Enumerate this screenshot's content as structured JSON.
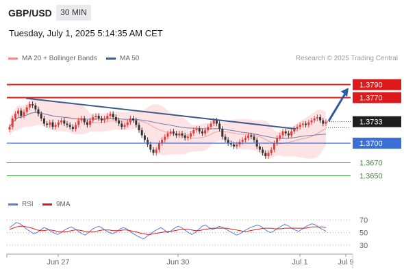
{
  "header": {
    "symbol": "GBP/USD",
    "timeframe": "30 MIN",
    "datetime": "Tuesday, July 1, 2025 5:14:35 AM CET"
  },
  "legend": {
    "ma20": "MA 20 + Bollinger Bands",
    "ma50": "MA 50",
    "credit": "Research © 2025 Trading Central"
  },
  "rsi_legend": {
    "rsi": "RSI",
    "ma": "9MA"
  },
  "colors": {
    "resistance": "#dd1a1a",
    "support": "#3a6fd8",
    "target": "#4caf50",
    "trend": "#3b5a8a",
    "bullish": "#e23b3b",
    "bearish": "#333333",
    "bb_fill": "#fde3e3"
  },
  "chart_data": [
    {
      "type": "candlestick",
      "title": "GBP/USD",
      "y_range": [
        1.362,
        1.382
      ],
      "x_ticks": [
        "Jun 27",
        "Jun 30",
        "Jul 1",
        "Jul 9"
      ],
      "levels": [
        {
          "label": "1.3790",
          "value": 1.379,
          "kind": "resistance"
        },
        {
          "label": "1.3770",
          "value": 1.377,
          "kind": "resistance"
        },
        {
          "label": "1.3733",
          "value": 1.3733,
          "kind": "last"
        },
        {
          "label": "1.3700",
          "value": 1.37,
          "kind": "support"
        },
        {
          "label": "1.3670",
          "value": 1.367,
          "kind": "target"
        },
        {
          "label": "1.3650",
          "value": 1.365,
          "kind": "target"
        }
      ],
      "trendline": {
        "from_value": 1.3769,
        "to_value": 1.3722
      },
      "projection": {
        "from_value": 1.3734,
        "to_value": 1.3785
      },
      "closes": [
        1.3725,
        1.3738,
        1.3745,
        1.375,
        1.3742,
        1.3748,
        1.3755,
        1.376,
        1.3758,
        1.3752,
        1.3745,
        1.3738,
        1.373,
        1.3728,
        1.3732,
        1.3725,
        1.3728,
        1.3732,
        1.3735,
        1.373,
        1.3728,
        1.3725,
        1.3722,
        1.3728,
        1.3735,
        1.3738,
        1.3732,
        1.3728,
        1.3735,
        1.374,
        1.3742,
        1.3738,
        1.3735,
        1.3738,
        1.3742,
        1.3745,
        1.374,
        1.3735,
        1.373,
        1.3725,
        1.3728,
        1.3732,
        1.3738,
        1.3735,
        1.3728,
        1.372,
        1.3712,
        1.3705,
        1.3698,
        1.369,
        1.3685,
        1.369,
        1.37,
        1.3705,
        1.371,
        1.3715,
        1.3718,
        1.3715,
        1.3712,
        1.3715,
        1.3712,
        1.3708,
        1.371,
        1.3715,
        1.372,
        1.3722,
        1.3718,
        1.3715,
        1.372,
        1.3725,
        1.373,
        1.3735,
        1.373,
        1.3722,
        1.371,
        1.3705,
        1.37,
        1.3698,
        1.3695,
        1.3698,
        1.3702,
        1.3705,
        1.3708,
        1.3712,
        1.371,
        1.3705,
        1.3695,
        1.369,
        1.3685,
        1.368,
        1.3685,
        1.369,
        1.37,
        1.3708,
        1.3712,
        1.3718,
        1.3715,
        1.3712,
        1.3718,
        1.3722,
        1.3725,
        1.3728,
        1.373,
        1.3728,
        1.3732,
        1.3735,
        1.3738,
        1.374,
        1.3735,
        1.373,
        1.3733
      ]
    },
    {
      "type": "line",
      "title": "RSI",
      "y_range": [
        20,
        80
      ],
      "y_ticks": [
        "70",
        "50",
        "30"
      ],
      "series": [
        {
          "name": "RSI",
          "values": [
            58,
            62,
            66,
            64,
            60,
            55,
            52,
            48,
            50,
            54,
            58,
            56,
            52,
            49,
            47,
            50,
            54,
            57,
            59,
            56,
            52,
            48,
            46,
            50,
            55,
            58,
            60,
            57,
            53,
            50,
            48,
            51,
            55,
            58,
            56,
            52,
            48,
            45,
            42,
            40,
            44,
            48,
            52,
            55,
            58,
            54,
            50,
            53,
            57,
            60,
            58,
            54,
            50,
            47,
            50,
            55,
            60,
            62,
            58,
            55,
            57,
            60,
            58,
            55,
            52,
            49,
            46,
            48,
            52,
            55,
            58,
            60,
            62,
            60,
            56,
            52,
            50,
            53,
            57,
            60,
            63,
            61,
            57,
            54,
            52,
            55,
            59,
            62,
            64,
            62,
            58,
            55,
            52
          ]
        },
        {
          "name": "9MA",
          "values": [
            55,
            57,
            59,
            60,
            60,
            59,
            58,
            56,
            54,
            53,
            53,
            54,
            54,
            53,
            52,
            51,
            51,
            52,
            53,
            54,
            54,
            53,
            52,
            51,
            51,
            52,
            53,
            54,
            54,
            54,
            53,
            53,
            53,
            54,
            54,
            53,
            52,
            51,
            49,
            48,
            47,
            47,
            48,
            49,
            50,
            51,
            52,
            52,
            53,
            54,
            55,
            55,
            55,
            54,
            53,
            53,
            54,
            55,
            56,
            57,
            57,
            57,
            57,
            57,
            56,
            55,
            54,
            53,
            52,
            52,
            53,
            54,
            55,
            56,
            57,
            57,
            57,
            56,
            56,
            56,
            57,
            57,
            57,
            57,
            57,
            57,
            57,
            58,
            59,
            59,
            59,
            59,
            58
          ]
        }
      ]
    }
  ]
}
